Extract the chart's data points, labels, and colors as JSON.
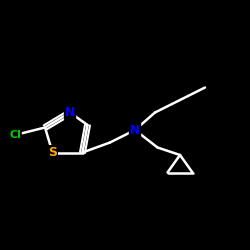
{
  "background_color": "#000000",
  "atom_colors": {
    "C": "#ffffff",
    "N": "#0000ff",
    "S": "#ffa500",
    "Cl": "#00cc00"
  },
  "bond_color": "#ffffff",
  "bond_width": 1.8,
  "figsize": [
    2.5,
    2.5
  ],
  "dpi": 100,
  "xlim": [
    0,
    10
  ],
  "ylim": [
    0,
    10
  ]
}
